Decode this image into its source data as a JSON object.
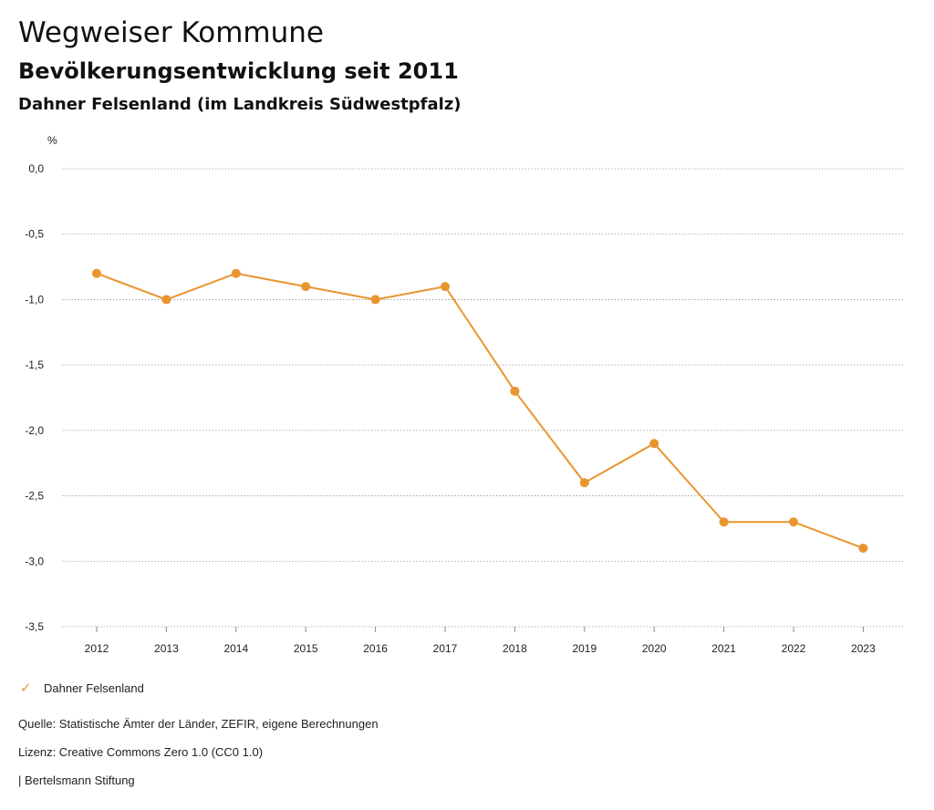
{
  "header": {
    "title": "Wegweiser Kommune",
    "subtitle": "Bevölkerungsentwicklung seit 2011",
    "region": "Dahner Felsenland (im Landkreis Südwestpfalz)"
  },
  "chart_data": {
    "type": "line",
    "ylabel": "%",
    "x": [
      "2012",
      "2013",
      "2014",
      "2015",
      "2016",
      "2017",
      "2018",
      "2019",
      "2020",
      "2021",
      "2022",
      "2023"
    ],
    "series": [
      {
        "name": "Dahner Felsenland",
        "values": [
          -0.8,
          -1.0,
          -0.8,
          -0.9,
          -1.0,
          -0.9,
          -1.7,
          -2.4,
          -2.1,
          -2.7,
          -2.7,
          -2.9
        ],
        "color": "#e9952f"
      }
    ],
    "ylim": [
      -3.5,
      0.0
    ],
    "yticks": [
      "0,0",
      "-0,5",
      "-1,0",
      "-1,5",
      "-2,0",
      "-2,5",
      "-3,0",
      "-3,5"
    ],
    "grid": true,
    "legend_position": "bottom-left"
  },
  "legend": {
    "label": "Dahner Felsenland",
    "icon": "check-icon"
  },
  "footer": {
    "source": "Quelle: Statistische Ämter der Länder, ZEFIR, eigene Berechnungen",
    "license": "Lizenz: Creative Commons Zero 1.0 (CC0 1.0)",
    "credit": "| Bertelsmann Stiftung"
  }
}
